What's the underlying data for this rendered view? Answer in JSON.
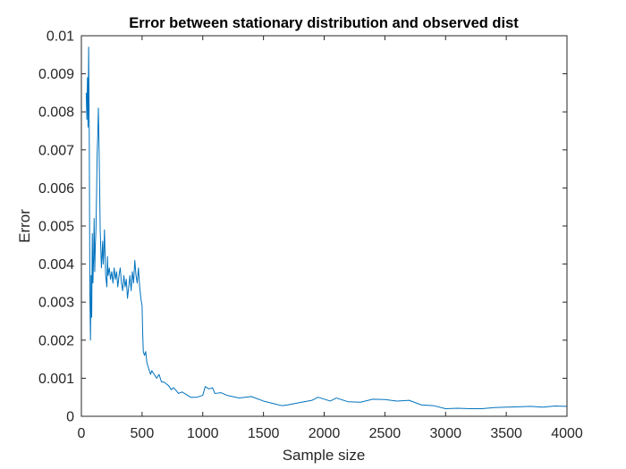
{
  "chart_data": {
    "type": "line",
    "title": "Error between stationary distribution and observed dist",
    "xlabel": "Sample size",
    "ylabel": "Error",
    "xlim": [
      0,
      4000
    ],
    "ylim": [
      0,
      0.01
    ],
    "xticks": [
      0,
      500,
      1000,
      1500,
      2000,
      2500,
      3000,
      3500,
      4000
    ],
    "xtick_labels": [
      "0",
      "500",
      "1000",
      "1500",
      "2000",
      "2500",
      "3000",
      "3500",
      "4000"
    ],
    "yticks": [
      0,
      0.001,
      0.002,
      0.003,
      0.004,
      0.005,
      0.006,
      0.007,
      0.008,
      0.009,
      0.01
    ],
    "ytick_labels": [
      "0",
      "0.001",
      "0.002",
      "0.003",
      "0.004",
      "0.005",
      "0.006",
      "0.007",
      "0.008",
      "0.009",
      "0.01"
    ],
    "grid": false,
    "box": true,
    "series": [
      {
        "color": "#0072BD",
        "x": [
          40,
          45,
          50,
          55,
          60,
          65,
          70,
          75,
          80,
          85,
          90,
          95,
          100,
          105,
          110,
          115,
          120,
          125,
          130,
          135,
          140,
          145,
          150,
          155,
          160,
          165,
          170,
          175,
          180,
          185,
          190,
          200,
          210,
          215,
          220,
          230,
          240,
          250,
          260,
          270,
          280,
          290,
          300,
          310,
          320,
          330,
          340,
          350,
          360,
          370,
          380,
          390,
          400,
          410,
          420,
          430,
          440,
          450,
          460,
          470,
          480,
          490,
          500,
          505,
          510,
          520,
          530,
          540,
          550,
          560,
          570,
          580,
          600,
          620,
          640,
          660,
          680,
          700,
          720,
          740,
          760,
          780,
          800,
          830,
          860,
          900,
          950,
          1000,
          1020,
          1050,
          1080,
          1100,
          1150,
          1200,
          1300,
          1400,
          1500,
          1600,
          1650,
          1700,
          1800,
          1900,
          1950,
          2000,
          2050,
          2100,
          2200,
          2300,
          2400,
          2500,
          2600,
          2700,
          2800,
          2900,
          3000,
          3100,
          3200,
          3300,
          3400,
          3500,
          3600,
          3700,
          3800,
          3900,
          4000
        ],
        "y": [
          0.0085,
          0.0078,
          0.0089,
          0.0076,
          0.0097,
          0.0074,
          0.0032,
          0.002,
          0.0037,
          0.0026,
          0.0048,
          0.0035,
          0.0041,
          0.0052,
          0.0038,
          0.0045,
          0.0049,
          0.0058,
          0.0069,
          0.0074,
          0.0081,
          0.0072,
          0.0061,
          0.0049,
          0.0044,
          0.0039,
          0.0042,
          0.0046,
          0.004,
          0.0043,
          0.0049,
          0.0037,
          0.0034,
          0.0042,
          0.0037,
          0.0039,
          0.0036,
          0.0038,
          0.0035,
          0.0039,
          0.0036,
          0.0038,
          0.0034,
          0.0037,
          0.0039,
          0.0035,
          0.0033,
          0.0037,
          0.0034,
          0.0036,
          0.0031,
          0.0034,
          0.0037,
          0.0033,
          0.0038,
          0.0035,
          0.0041,
          0.0037,
          0.0035,
          0.0039,
          0.0034,
          0.0031,
          0.0029,
          0.0022,
          0.0017,
          0.0016,
          0.0017,
          0.0014,
          0.0013,
          0.0012,
          0.0011,
          0.0012,
          0.0011,
          0.001,
          0.0011,
          0.0009,
          0.0009,
          0.00085,
          0.0008,
          0.0007,
          0.00075,
          0.00068,
          0.0006,
          0.00064,
          0.00058,
          0.0005,
          0.0005,
          0.00055,
          0.00078,
          0.00072,
          0.00075,
          0.0006,
          0.00062,
          0.00055,
          0.00048,
          0.00052,
          0.0004,
          0.00032,
          0.00028,
          0.0003,
          0.00036,
          0.00042,
          0.0005,
          0.00045,
          0.0004,
          0.00048,
          0.00038,
          0.00037,
          0.00045,
          0.00044,
          0.0004,
          0.00042,
          0.0003,
          0.00028,
          0.0002,
          0.00021,
          0.0002,
          0.0002,
          0.00023,
          0.00024,
          0.00025,
          0.00026,
          0.00024,
          0.00027,
          0.00026
        ]
      }
    ]
  }
}
